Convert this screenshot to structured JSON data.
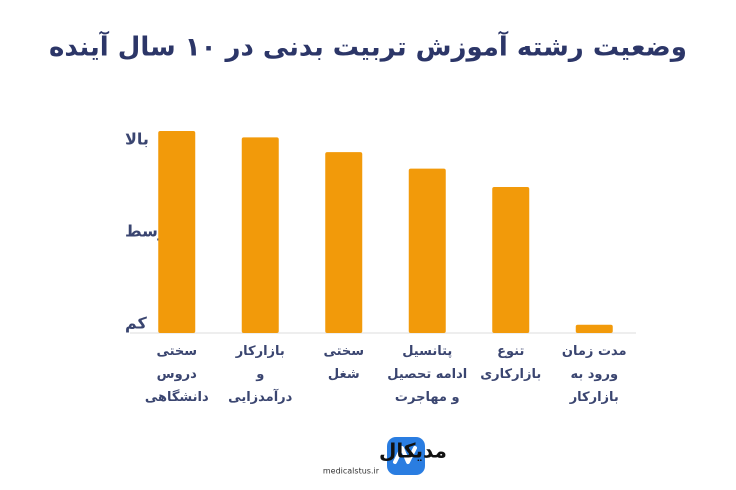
{
  "chart_data": {
    "type": "bar",
    "title": "وضعیت رشته آموزش تربیت بدنی در ۱۰ سال آینده",
    "categories": [
      "سختی\nدروس\nدانشگاهی",
      "بازارکار\nو\nدرآمدزایی",
      "سختی\nشغل",
      "پتانسیل\nادامه تحصیل\nو مهاجرت",
      "تنوع\nبازارکاری",
      "مدت زمان\nورود به\nبازارکار"
    ],
    "values": [
      3.1,
      3.03,
      2.87,
      2.69,
      2.49,
      0.99
    ],
    "color": "#f29a0a",
    "ylim": [
      0.9,
      3.1
    ],
    "yticks": [
      {
        "value": 1,
        "label": "کم"
      },
      {
        "value": 2,
        "label": "متوسط"
      },
      {
        "value": 3,
        "label": "بالا"
      }
    ],
    "grid": false
  },
  "brand": {
    "name": "مدیکال",
    "site": "medicalstus.ir"
  }
}
